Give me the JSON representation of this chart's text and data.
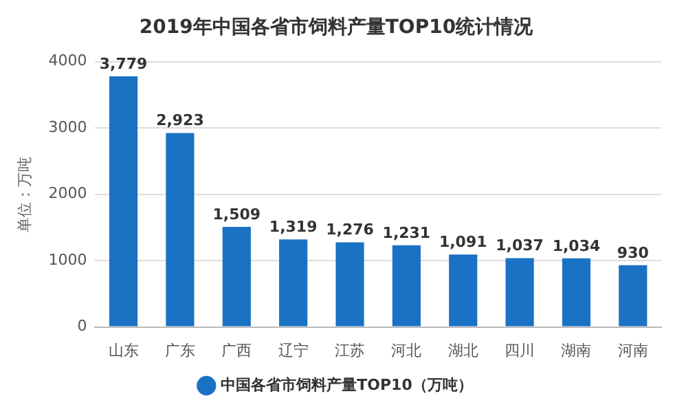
{
  "chart_data": {
    "type": "bar",
    "title": "2019年中国各省市饲料产量TOP10统计情况",
    "ylabel": "单位：万吨",
    "categories": [
      "山东",
      "广东",
      "广西",
      "辽宁",
      "江苏",
      "河北",
      "湖北",
      "四川",
      "湖南",
      "河南"
    ],
    "series": [
      {
        "name": "中国各省市饲料产量TOP10（万吨）",
        "color": "#1a72c4",
        "values": [
          3779,
          2923,
          1509,
          1319,
          1276,
          1231,
          1091,
          1037,
          1034,
          930
        ],
        "value_labels": [
          "3,779",
          "2,923",
          "1,509",
          "1,319",
          "1,276",
          "1,231",
          "1,091",
          "1,037",
          "1,034",
          "930"
        ]
      }
    ],
    "ylim": [
      0,
      4000
    ],
    "yticks": [
      0,
      1000,
      2000,
      3000,
      4000
    ],
    "grid": "y",
    "legend": "bottom"
  }
}
